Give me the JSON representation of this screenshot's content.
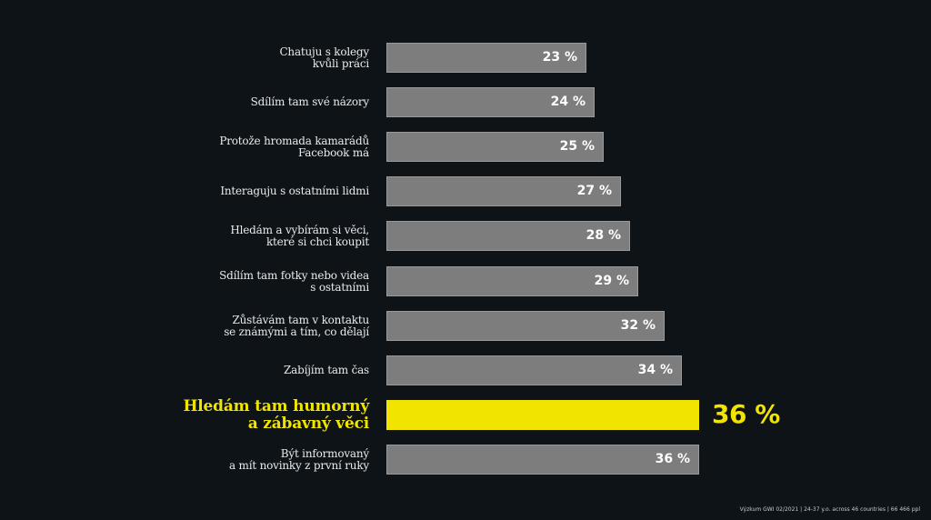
{
  "chart_data": {
    "type": "bar",
    "orientation": "horizontal",
    "categories": [
      "Chatuju s kolegy\nkvůli práci",
      "Sdílím tam své názory",
      "Protože hromada kamarádů\nFacebook má",
      "Interaguju s ostatními lidmi",
      "Hledám a vybírám si věci,\nkteré si chci koupit",
      "Sdílím tam fotky nebo videa\ns ostatními",
      "Zůstávám tam v kontaktu\nse známými a tím, co dělají",
      "Zabíjím tam čas",
      "Hledám tam humorný\na zábavný věci",
      "Být informovaný\na mít novinky z první ruky"
    ],
    "values": [
      23,
      24,
      25,
      27,
      28,
      29,
      32,
      34,
      36,
      36
    ],
    "value_labels": [
      "23 %",
      "24 %",
      "25 %",
      "27 %",
      "28 %",
      "29 %",
      "32 %",
      "34 %",
      "36 %",
      "36 %"
    ],
    "highlight_index": 8,
    "xlim": [
      0,
      36
    ],
    "grid": false,
    "colors": {
      "background": "#0e1317",
      "bar": "#7d7d7d",
      "highlight": "#f0e400",
      "label": "#e9eaeb"
    }
  },
  "footer": {
    "source": "Výzkum GWI 02/2021 | 24-37 y.o. across 46 countries | 66 466 ppl"
  }
}
